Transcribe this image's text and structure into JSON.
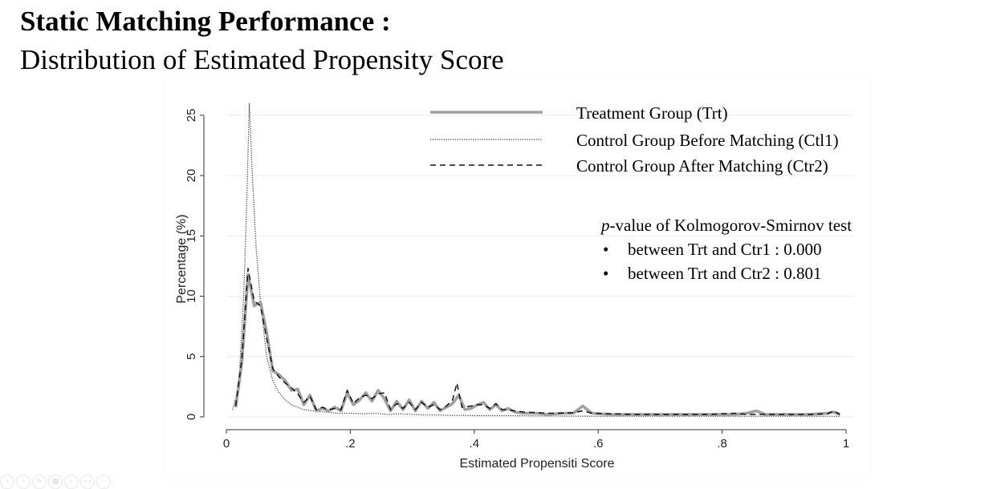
{
  "slide": {
    "title": "Static Matching Performance :",
    "subtitle": "Distribution of Estimated Propensity Score"
  },
  "chart_data": {
    "type": "line",
    "xlabel": "Estimated Propensiti Score",
    "ylabel": "Percentage (%)",
    "xlim": [
      0,
      1
    ],
    "ylim": [
      0,
      26
    ],
    "x_ticks": [
      {
        "value": 0,
        "label": "0"
      },
      {
        "value": 0.2,
        "label": ".2"
      },
      {
        "value": 0.4,
        "label": ".4"
      },
      {
        "value": 0.6,
        "label": ".6"
      },
      {
        "value": 0.8,
        "label": ".8"
      },
      {
        "value": 1,
        "label": "1"
      }
    ],
    "y_ticks": [
      {
        "value": 0,
        "label": "0"
      },
      {
        "value": 5,
        "label": "5"
      },
      {
        "value": 10,
        "label": "10"
      },
      {
        "value": 15,
        "label": "15"
      },
      {
        "value": 20,
        "label": "20"
      },
      {
        "value": 25,
        "label": "25"
      }
    ],
    "grid": true,
    "legend_position": "top-right",
    "series": [
      {
        "name": "Treatment Group (Trt)",
        "style": "solid",
        "color": "#a0a0a0",
        "points": [
          [
            0.015,
            0.8
          ],
          [
            0.025,
            4.5
          ],
          [
            0.035,
            11.8
          ],
          [
            0.045,
            9.2
          ],
          [
            0.055,
            9.5
          ],
          [
            0.065,
            7.0
          ],
          [
            0.075,
            3.8
          ],
          [
            0.085,
            3.5
          ],
          [
            0.095,
            3.0
          ],
          [
            0.105,
            2.2
          ],
          [
            0.115,
            2.3
          ],
          [
            0.125,
            1.0
          ],
          [
            0.135,
            1.8
          ],
          [
            0.145,
            0.5
          ],
          [
            0.155,
            0.7
          ],
          [
            0.165,
            0.5
          ],
          [
            0.175,
            0.8
          ],
          [
            0.185,
            0.5
          ],
          [
            0.195,
            2.0
          ],
          [
            0.205,
            1.0
          ],
          [
            0.215,
            1.4
          ],
          [
            0.225,
            2.0
          ],
          [
            0.235,
            1.3
          ],
          [
            0.245,
            2.2
          ],
          [
            0.255,
            1.5
          ],
          [
            0.265,
            0.5
          ],
          [
            0.275,
            1.3
          ],
          [
            0.285,
            0.6
          ],
          [
            0.295,
            1.4
          ],
          [
            0.305,
            0.5
          ],
          [
            0.315,
            1.3
          ],
          [
            0.325,
            0.7
          ],
          [
            0.335,
            1.2
          ],
          [
            0.345,
            0.5
          ],
          [
            0.355,
            0.8
          ],
          [
            0.365,
            1.1
          ],
          [
            0.375,
            1.8
          ],
          [
            0.385,
            0.6
          ],
          [
            0.395,
            0.7
          ],
          [
            0.405,
            1.0
          ],
          [
            0.415,
            1.2
          ],
          [
            0.425,
            0.6
          ],
          [
            0.435,
            1.0
          ],
          [
            0.445,
            0.5
          ],
          [
            0.455,
            0.7
          ],
          [
            0.465,
            0.4
          ],
          [
            0.48,
            0.3
          ],
          [
            0.5,
            0.3
          ],
          [
            0.52,
            0.2
          ],
          [
            0.54,
            0.3
          ],
          [
            0.56,
            0.3
          ],
          [
            0.575,
            0.9
          ],
          [
            0.59,
            0.3
          ],
          [
            0.62,
            0.2
          ],
          [
            0.66,
            0.2
          ],
          [
            0.7,
            0.2
          ],
          [
            0.74,
            0.2
          ],
          [
            0.78,
            0.2
          ],
          [
            0.82,
            0.2
          ],
          [
            0.84,
            0.3
          ],
          [
            0.855,
            0.5
          ],
          [
            0.87,
            0.2
          ],
          [
            0.9,
            0.2
          ],
          [
            0.94,
            0.2
          ],
          [
            0.97,
            0.3
          ],
          [
            0.98,
            0.4
          ],
          [
            0.99,
            0.2
          ]
        ]
      },
      {
        "name": "Control Group Before Matching (Ctl1)",
        "style": "dotted",
        "color": "#333333",
        "points": [
          [
            0.01,
            0.6
          ],
          [
            0.02,
            2.5
          ],
          [
            0.028,
            10.0
          ],
          [
            0.033,
            18.0
          ],
          [
            0.037,
            26.0
          ],
          [
            0.042,
            20.0
          ],
          [
            0.048,
            14.0
          ],
          [
            0.055,
            9.5
          ],
          [
            0.065,
            5.0
          ],
          [
            0.075,
            3.0
          ],
          [
            0.085,
            2.0
          ],
          [
            0.095,
            1.4
          ],
          [
            0.105,
            1.0
          ],
          [
            0.115,
            0.8
          ],
          [
            0.125,
            0.6
          ],
          [
            0.14,
            0.5
          ],
          [
            0.16,
            0.4
          ],
          [
            0.18,
            0.3
          ],
          [
            0.2,
            0.3
          ],
          [
            0.22,
            0.25
          ],
          [
            0.24,
            0.3
          ],
          [
            0.26,
            0.2
          ],
          [
            0.28,
            0.25
          ],
          [
            0.3,
            0.2
          ],
          [
            0.32,
            0.15
          ],
          [
            0.34,
            0.15
          ],
          [
            0.36,
            0.12
          ],
          [
            0.38,
            0.12
          ],
          [
            0.4,
            0.1
          ],
          [
            0.45,
            0.1
          ],
          [
            0.5,
            0.08
          ],
          [
            0.6,
            0.05
          ],
          [
            0.7,
            0.05
          ],
          [
            0.8,
            0.05
          ],
          [
            0.9,
            0.05
          ],
          [
            0.99,
            0.05
          ]
        ]
      },
      {
        "name": "Control Group After Matching (Ctr2)",
        "style": "dashed",
        "color": "#111111",
        "points": [
          [
            0.015,
            0.9
          ],
          [
            0.025,
            4.8
          ],
          [
            0.035,
            12.3
          ],
          [
            0.045,
            9.6
          ],
          [
            0.055,
            9.2
          ],
          [
            0.065,
            6.5
          ],
          [
            0.075,
            4.0
          ],
          [
            0.085,
            3.3
          ],
          [
            0.095,
            2.8
          ],
          [
            0.105,
            2.4
          ],
          [
            0.115,
            1.9
          ],
          [
            0.125,
            1.2
          ],
          [
            0.135,
            1.7
          ],
          [
            0.145,
            0.6
          ],
          [
            0.155,
            0.8
          ],
          [
            0.165,
            0.6
          ],
          [
            0.175,
            0.7
          ],
          [
            0.185,
            0.6
          ],
          [
            0.195,
            2.2
          ],
          [
            0.205,
            1.1
          ],
          [
            0.215,
            1.6
          ],
          [
            0.225,
            1.8
          ],
          [
            0.235,
            1.5
          ],
          [
            0.245,
            1.9
          ],
          [
            0.255,
            2.0
          ],
          [
            0.265,
            0.6
          ],
          [
            0.275,
            1.1
          ],
          [
            0.285,
            0.7
          ],
          [
            0.295,
            1.2
          ],
          [
            0.305,
            0.6
          ],
          [
            0.315,
            1.2
          ],
          [
            0.325,
            0.8
          ],
          [
            0.335,
            1.0
          ],
          [
            0.345,
            0.6
          ],
          [
            0.355,
            0.9
          ],
          [
            0.365,
            1.4
          ],
          [
            0.372,
            2.8
          ],
          [
            0.38,
            0.8
          ],
          [
            0.395,
            0.9
          ],
          [
            0.405,
            1.0
          ],
          [
            0.415,
            1.0
          ],
          [
            0.425,
            0.7
          ],
          [
            0.435,
            1.1
          ],
          [
            0.445,
            0.6
          ],
          [
            0.455,
            0.6
          ],
          [
            0.465,
            0.5
          ],
          [
            0.48,
            0.4
          ],
          [
            0.5,
            0.35
          ],
          [
            0.52,
            0.3
          ],
          [
            0.54,
            0.3
          ],
          [
            0.56,
            0.35
          ],
          [
            0.575,
            0.5
          ],
          [
            0.59,
            0.3
          ],
          [
            0.62,
            0.25
          ],
          [
            0.66,
            0.2
          ],
          [
            0.7,
            0.2
          ],
          [
            0.74,
            0.2
          ],
          [
            0.78,
            0.2
          ],
          [
            0.82,
            0.3
          ],
          [
            0.84,
            0.2
          ],
          [
            0.855,
            0.2
          ],
          [
            0.87,
            0.2
          ],
          [
            0.9,
            0.2
          ],
          [
            0.94,
            0.2
          ],
          [
            0.97,
            0.25
          ],
          [
            0.98,
            0.5
          ],
          [
            0.99,
            0.2
          ]
        ]
      }
    ],
    "annotation": {
      "heading_italic": "p",
      "heading_rest": "-value of Kolmogorov-Smirnov test",
      "bullets": [
        "between Trt and Ctr1 : 0.000",
        "between Trt and Ctr2 : 0.801"
      ],
      "bullet_char": "•"
    }
  }
}
